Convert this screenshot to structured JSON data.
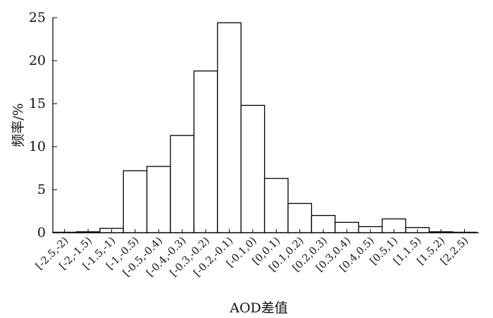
{
  "chart_data": {
    "type": "bar",
    "title": "",
    "xlabel": "AOD差值",
    "ylabel": "频率/%",
    "ylim": [
      0,
      25
    ],
    "yticks": [
      0,
      5,
      10,
      15,
      20,
      25
    ],
    "grid": false,
    "categories": [
      "[-2.5,-2)",
      "[-2,-1.5)",
      "[-1.5,-1)",
      "[-1,-0.5)",
      "[-0.5,-0.4)",
      "[-0.4,-0.3)",
      "[-0.3,-0.2)",
      "[-0.2,-0.1)",
      "[-0.1,0)",
      "[0,0.1)",
      "[0.1,0.2)",
      "[0.2,0.3)",
      "[0.3,0.4)",
      "[0.4,0.5)",
      "[0.5,1)",
      "[1,1.5)",
      "[1.5,2)",
      "[2,2.5)"
    ],
    "values": [
      0.05,
      0.1,
      0.5,
      7.2,
      7.7,
      11.3,
      18.8,
      24.4,
      14.8,
      6.3,
      3.4,
      2.0,
      1.2,
      0.7,
      1.6,
      0.6,
      0.1,
      0.05
    ]
  }
}
